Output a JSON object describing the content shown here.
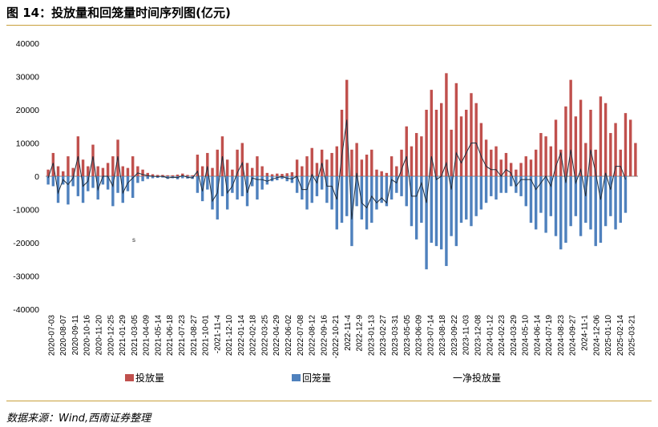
{
  "figure": {
    "title": "图 14：投放量和回笼量时间序列图(亿元)",
    "source": "数据来源：Wind,西南证券整理",
    "stray_mark": "s"
  },
  "colors": {
    "injection": "#c0504d",
    "withdrawal": "#4f81bd",
    "net": "#1f2d3d",
    "rule": "#c8a03c"
  },
  "chart_data": {
    "type": "bar",
    "title": "",
    "xlabel": "",
    "ylabel": "",
    "ylim": [
      -40000,
      40000
    ],
    "yticks": [
      40000,
      30000,
      20000,
      10000,
      0,
      -10000,
      -20000,
      -30000,
      -40000
    ],
    "grid": false,
    "legend_position": "bottom",
    "x_tick_labels": [
      "2020-07-03",
      "2020-08-07",
      "2020-09-11",
      "2020-10-16",
      "2020-11-20",
      "2020-12-25",
      "2021-01-29",
      "2021-03-05",
      "2021-04-09",
      "2021-05-14",
      "2021-06-18",
      "2021-07-23",
      "2021-08-27",
      "2021-10-01",
      "-2021-11-4",
      "2021-12-10",
      "2022-01-14",
      "2022-02-18",
      "2022-03-25",
      "2022-04-29",
      "2022-06-02",
      "2022-07-08",
      "2022-08-12",
      "2022-09-16",
      "-2022-10-21",
      "2022-11-4",
      "2022-12-9",
      "2023-01-13",
      "2023-02-27",
      "2023-03-31",
      "2023-05-05",
      "2023-06-09",
      "2023-07-14",
      "2023-08-18",
      "2023-09-22",
      "2023-11-03",
      "2023-12-08",
      "2024-01-12",
      "2024-02-23",
      "2024-03-29",
      "2024-05-10",
      "2024-06-14",
      "2024-07-19",
      "2024-08-23",
      "2024-09-27",
      "2024-11-1",
      "2024-12-06",
      "2025-01-10",
      "2025-02-14",
      "2025-03-21"
    ],
    "series": [
      {
        "name": "投放量",
        "key": "injection",
        "values": [
          2000,
          7000,
          3000,
          1500,
          6000,
          2500,
          12000,
          5000,
          3000,
          9500,
          3000,
          2500,
          4000,
          6000,
          11000,
          3000,
          2500,
          6000,
          3000,
          2000,
          1000,
          600,
          400,
          400,
          300,
          300,
          500,
          800,
          400,
          300,
          6500,
          3000,
          7000,
          2500,
          8000,
          12000,
          5000,
          2000,
          8000,
          10000,
          4000,
          2500,
          6000,
          3000,
          1000,
          600,
          800,
          700,
          900,
          1200,
          5000,
          3000,
          6000,
          8500,
          4000,
          8000,
          5000,
          7000,
          9000,
          20000,
          29000,
          8000,
          10000,
          5000,
          6500,
          8000,
          2000,
          1500,
          1000,
          6000,
          3000,
          8000,
          15000,
          9000,
          13000,
          12000,
          20000,
          26000,
          20000,
          22000,
          31000,
          14000,
          28000,
          18000,
          20000,
          25000,
          22000,
          16000,
          11000,
          8000,
          9000,
          5000,
          7000,
          4000,
          2000,
          4000,
          6000,
          5000,
          8000,
          13000,
          12000,
          9000,
          17000,
          8000,
          21000,
          29000,
          18000,
          23000,
          10000,
          20000,
          8000,
          24000,
          22000,
          13000,
          16000,
          8000,
          19000,
          17000,
          10000
        ]
      },
      {
        "name": "回笼量",
        "key": "withdrawal",
        "values": [
          -2500,
          -3000,
          -8000,
          -2500,
          -8500,
          -3000,
          -6000,
          -8000,
          -4500,
          -3500,
          -7000,
          -2500,
          -4000,
          -9000,
          -5000,
          -8000,
          -4500,
          -6500,
          -2000,
          -1500,
          -800,
          -600,
          -500,
          -400,
          -800,
          -600,
          -900,
          -600,
          -700,
          -800,
          -5000,
          -7500,
          -4000,
          -10000,
          -13000,
          -6000,
          -10000,
          -5000,
          -7000,
          -6000,
          -9000,
          -3000,
          -7000,
          -4000,
          -2500,
          -1500,
          -1200,
          -800,
          -1500,
          -2000,
          -5000,
          -7000,
          -10000,
          -8000,
          -6000,
          -4000,
          -8000,
          -10000,
          -16000,
          -14000,
          -12000,
          -21000,
          -9000,
          -13000,
          -16000,
          -14000,
          -10000,
          -8000,
          -9000,
          -7000,
          -5000,
          -6000,
          -9000,
          -15000,
          -19000,
          -14000,
          -28000,
          -20000,
          -21000,
          -22000,
          -27000,
          -18000,
          -21000,
          -14000,
          -13000,
          -15000,
          -12000,
          -10000,
          -8000,
          -6000,
          -7000,
          -5000,
          -5000,
          -3000,
          -5000,
          -6000,
          -9000,
          -14000,
          -16000,
          -11000,
          -17000,
          -12000,
          -18000,
          -22000,
          -20000,
          -15000,
          -12000,
          -18000,
          -14000,
          -16000,
          -21000,
          -20000,
          -15000,
          -12000,
          -16000,
          -14000,
          -11000
        ]
      },
      {
        "name": "一净投放量",
        "key": "net",
        "values": [
          -500,
          4000,
          -5000,
          -1000,
          -2500,
          -500,
          6000,
          -3000,
          -1500,
          6000,
          -4000,
          0,
          0,
          -3000,
          6000,
          -5000,
          -2000,
          -500,
          1000,
          500,
          200,
          0,
          -100,
          0,
          -500,
          -300,
          -400,
          200,
          -300,
          -500,
          1500,
          -4500,
          3000,
          -7500,
          -5000,
          6000,
          -5000,
          -3000,
          1000,
          4000,
          -5000,
          -500,
          -1000,
          -1000,
          -1500,
          -900,
          -400,
          -100,
          -600,
          -800,
          0,
          -4000,
          -4000,
          500,
          -2000,
          4000,
          -3000,
          -3000,
          -7000,
          6000,
          17000,
          -13000,
          1000,
          -8000,
          -9500,
          -6000,
          -8000,
          -6500,
          -8000,
          -1000,
          -2000,
          2000,
          6000,
          -6000,
          -6000,
          -2000,
          -8000,
          6000,
          -1000,
          0,
          4000,
          -4000,
          7000,
          4000,
          7000,
          10000,
          10000,
          6000,
          3000,
          2000,
          2000,
          0,
          2000,
          1000,
          -3000,
          -1000,
          -1000,
          -1000,
          -4000,
          -2000,
          0,
          -3000,
          3000,
          7000,
          -2000,
          8000,
          -2000,
          2000,
          -6000,
          8000,
          1000,
          -7000,
          1000,
          -4000,
          3000,
          3000,
          -1000
        ]
      }
    ]
  }
}
